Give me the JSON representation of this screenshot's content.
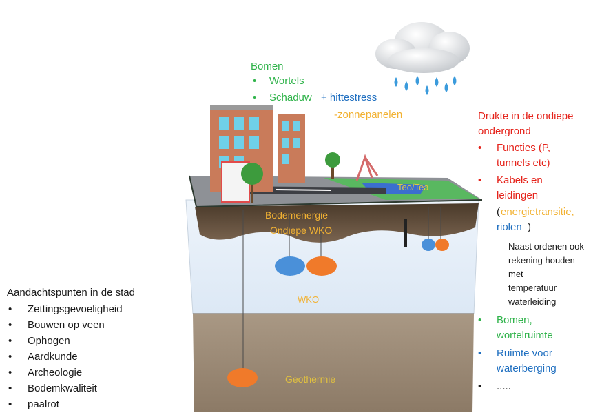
{
  "top_list": {
    "title": "Bomen",
    "items": [
      "Wortels",
      "Schaduw"
    ],
    "extra_blue": "+ hittestress",
    "extra_orange": "-zonnepanelen"
  },
  "right_list": {
    "heading_line1": "Drukte in de ondiepe",
    "heading_line2": "ondergrond",
    "functies_1": "Functies (P,",
    "functies_2": "tunnels etc)",
    "kabels_1": "Kabels en",
    "kabels_2": "leidingen",
    "paren_open": "(",
    "energie_1": "energietransitie,",
    "riolen": "riolen",
    "paren_close": ")",
    "note": [
      "Naast ordenen ook",
      "rekening houden",
      "met",
      "temperatuur",
      "waterleiding"
    ],
    "bomen_1": "Bomen,",
    "bomen_2": "wortelruimte",
    "ruimte_1": "Ruimte voor",
    "ruimte_2": "waterberging",
    "dots": "....."
  },
  "left_list": {
    "title": "Aandachtspunten in de stad",
    "items": [
      "Zettingsgevoeligheid",
      "Bouwen op veen",
      "Ophogen",
      "Aardkunde",
      "Archeologie",
      "Bodemkwaliteit",
      "paalrot"
    ]
  },
  "diagram": {
    "teo_label": "Teo/Tea",
    "bodemenergie": "Bodemenergie",
    "ondiepe_wko": "Ondiepe WKO",
    "wko": "WKO",
    "geothermie": "Geothermie"
  },
  "colors": {
    "green": "#2fb34a",
    "blue": "#1f6fc0",
    "red": "#e5231b",
    "orange": "#f2b233",
    "aquifer_blue": "#4a90d9",
    "aquifer_orange": "#f07a2a"
  }
}
